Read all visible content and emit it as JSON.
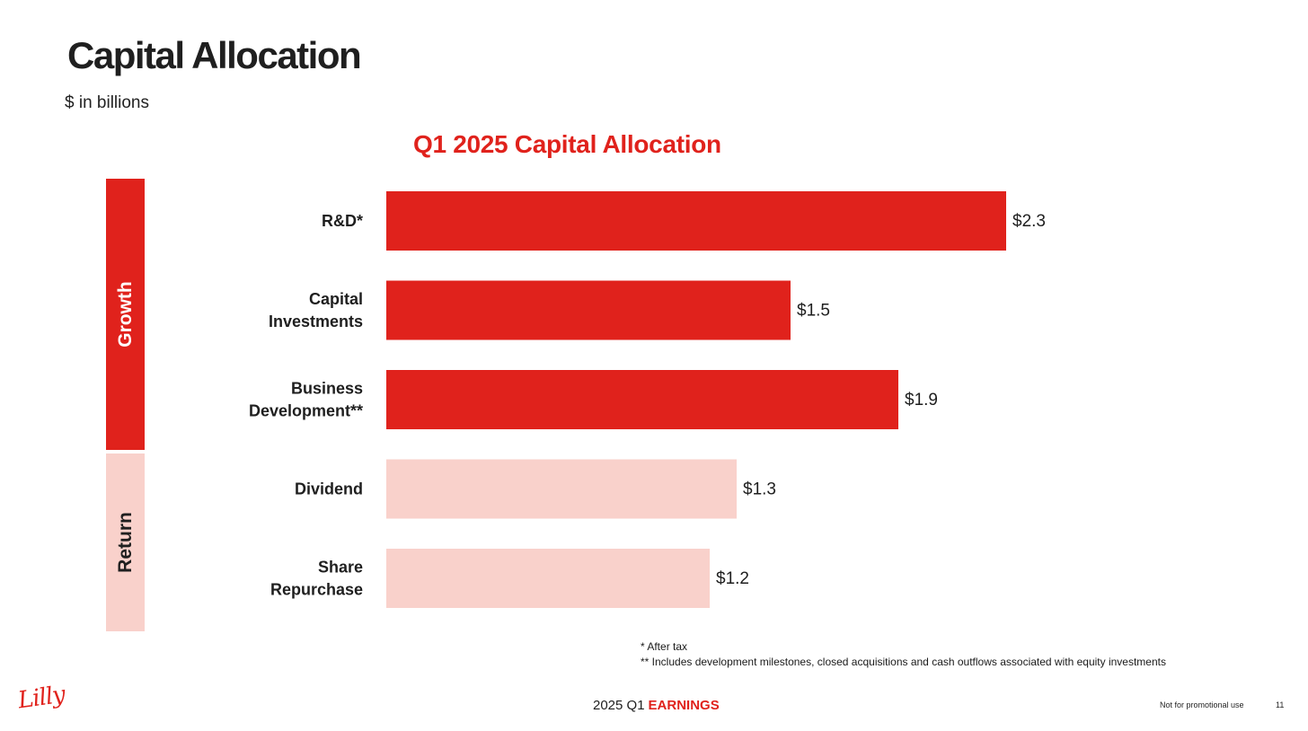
{
  "page": {
    "title": "Capital Allocation",
    "units": "$ in billions"
  },
  "groups": {
    "growth": "Growth",
    "return": "Return"
  },
  "colors": {
    "growth": "#e0221c",
    "return": "#f9d1cb"
  },
  "chart_data": {
    "type": "bar",
    "orientation": "horizontal",
    "title": "Q1 2025 Capital Allocation",
    "categories": [
      [
        "R&D*"
      ],
      [
        "Capital",
        "Investments"
      ],
      [
        "Business",
        "Development**"
      ],
      [
        "Dividend"
      ],
      [
        "Share",
        "Repurchase"
      ]
    ],
    "values": [
      2.3,
      1.5,
      1.9,
      1.3,
      1.2
    ],
    "value_labels": [
      "$2.3",
      "$1.5",
      "$1.9",
      "$1.3",
      "$1.2"
    ],
    "groups": [
      "growth",
      "growth",
      "growth",
      "return",
      "return"
    ],
    "xlim": [
      0,
      2.3
    ],
    "grid": false
  },
  "footnotes": {
    "note1": "* After tax",
    "note2": "** Includes development milestones, closed acquisitions and cash outflows associated with equity investments"
  },
  "footer": {
    "logo": "Lilly",
    "period": "2025 Q1",
    "earnings": "EARNINGS",
    "disclaimer": "Not for promotional use",
    "page_number": "11"
  }
}
